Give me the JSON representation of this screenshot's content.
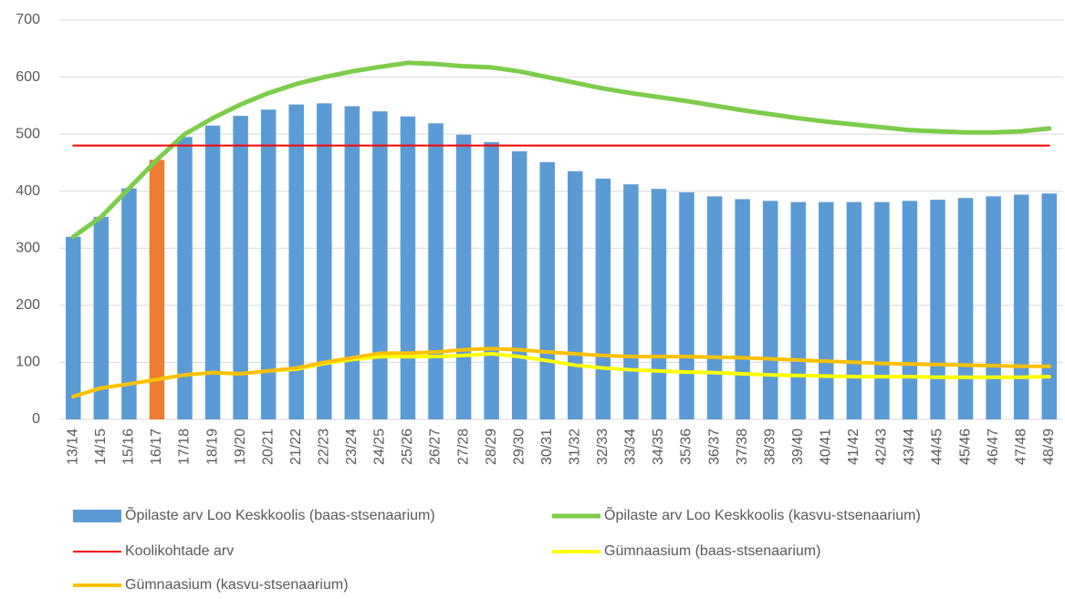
{
  "chart_data": {
    "type": "bar",
    "categories": [
      "13/14",
      "14/15",
      "15/16",
      "16/17",
      "17/18",
      "18/19",
      "19/20",
      "20/21",
      "21/22",
      "22/23",
      "23/24",
      "24/25",
      "25/26",
      "26/27",
      "27/28",
      "28/29",
      "29/30",
      "30/31",
      "31/32",
      "32/33",
      "33/34",
      "34/35",
      "35/36",
      "36/37",
      "37/38",
      "38/39",
      "39/40",
      "40/41",
      "41/42",
      "42/43",
      "43/44",
      "44/45",
      "45/46",
      "46/47",
      "47/48",
      "48/49"
    ],
    "series": [
      {
        "name": "Õpilaste arv Loo Keskkoolis (baas-stsenaarium)",
        "type": "bar",
        "color": "#5b9bd5",
        "colors": [
          "#5b9bd5",
          "#5b9bd5",
          "#5b9bd5",
          "#ed7d31",
          "#5b9bd5",
          "#5b9bd5",
          "#5b9bd5",
          "#5b9bd5",
          "#5b9bd5",
          "#5b9bd5",
          "#5b9bd5",
          "#5b9bd5",
          "#5b9bd5",
          "#5b9bd5",
          "#5b9bd5",
          "#5b9bd5",
          "#5b9bd5",
          "#5b9bd5",
          "#5b9bd5",
          "#5b9bd5",
          "#5b9bd5",
          "#5b9bd5",
          "#5b9bd5",
          "#5b9bd5",
          "#5b9bd5",
          "#5b9bd5",
          "#5b9bd5",
          "#5b9bd5",
          "#5b9bd5",
          "#5b9bd5",
          "#5b9bd5",
          "#5b9bd5",
          "#5b9bd5",
          "#5b9bd5",
          "#5b9bd5",
          "#5b9bd5"
        ],
        "values": [
          320,
          355,
          405,
          455,
          495,
          515,
          532,
          543,
          552,
          554,
          549,
          540,
          531,
          519,
          499,
          486,
          470,
          451,
          435,
          422,
          412,
          404,
          398,
          391,
          386,
          383,
          381,
          381,
          381,
          381,
          383,
          385,
          388,
          391,
          394,
          396
        ]
      },
      {
        "name": "Õpilaste arv Loo Keskkoolis (kasvu-stsenaarium)",
        "type": "line",
        "color": "#7ccd4b",
        "width": 5,
        "values": [
          320,
          355,
          405,
          455,
          500,
          528,
          552,
          572,
          588,
          600,
          610,
          618,
          625,
          623,
          619,
          617,
          610,
          600,
          590,
          580,
          572,
          565,
          558,
          550,
          542,
          535,
          528,
          522,
          517,
          512,
          507,
          505,
          503,
          503,
          505,
          510
        ]
      },
      {
        "name": "Koolikohtade arv",
        "type": "line",
        "color": "#ff0000",
        "width": 2,
        "values": [
          480,
          480,
          480,
          480,
          480,
          480,
          480,
          480,
          480,
          480,
          480,
          480,
          480,
          480,
          480,
          480,
          480,
          480,
          480,
          480,
          480,
          480,
          480,
          480,
          480,
          480,
          480,
          480,
          480,
          480,
          480,
          480,
          480,
          480,
          480,
          480
        ]
      },
      {
        "name": "Gümnaasium (baas-stsenaarium)",
        "type": "line",
        "color": "#ffff00",
        "width": 4,
        "values": [
          40,
          55,
          62,
          70,
          78,
          82,
          80,
          85,
          88,
          98,
          105,
          110,
          110,
          110,
          112,
          115,
          110,
          103,
          95,
          90,
          87,
          85,
          83,
          82,
          80,
          78,
          77,
          76,
          75,
          75,
          75,
          74,
          74,
          74,
          74,
          75
        ]
      },
      {
        "name": "Gümnaasium (kasvu-stsenaarium)",
        "type": "line",
        "color": "#ffc000",
        "width": 4,
        "values": [
          40,
          55,
          62,
          70,
          78,
          82,
          80,
          85,
          90,
          100,
          108,
          116,
          116,
          118,
          122,
          124,
          122,
          118,
          115,
          112,
          110,
          110,
          110,
          109,
          108,
          106,
          104,
          102,
          100,
          98,
          97,
          96,
          95,
          94,
          93,
          93
        ]
      }
    ],
    "ylim": [
      0,
      700
    ],
    "yticks": [
      0,
      100,
      200,
      300,
      400,
      500,
      600,
      700
    ],
    "grid": true
  }
}
